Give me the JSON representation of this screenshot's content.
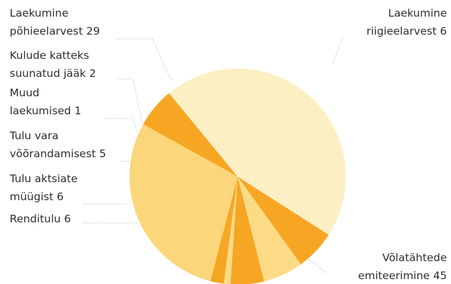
{
  "chart_data": {
    "type": "pie",
    "title": "",
    "slices": [
      {
        "label_lines": [
          "Laekumine",
          "riigieelarvest"
        ],
        "value": 6,
        "color": "#F6A623"
      },
      {
        "label_lines": [
          "Võlatähtede",
          "emiteerimine"
        ],
        "value": 45,
        "color": "#FCEFC4"
      },
      {
        "label_lines": [
          "Renditulu"
        ],
        "value": 6,
        "color": "#F6A623"
      },
      {
        "label_lines": [
          "Tulu aktsiate",
          "müügist"
        ],
        "value": 6,
        "color": "#FBDB86"
      },
      {
        "label_lines": [
          "Tulu vara",
          "võõrandamisest"
        ],
        "value": 5,
        "color": "#F6A623"
      },
      {
        "label_lines": [
          "Muud",
          "laekumised"
        ],
        "value": 1,
        "color": "#FBDB86"
      },
      {
        "label_lines": [
          "Kulude katteks",
          "suunatud jääk"
        ],
        "value": 2,
        "color": "#F6A623"
      },
      {
        "label_lines": [
          "Laekumine",
          "põhieelarvest"
        ],
        "value": 29,
        "color": "#FBD67A"
      }
    ]
  }
}
